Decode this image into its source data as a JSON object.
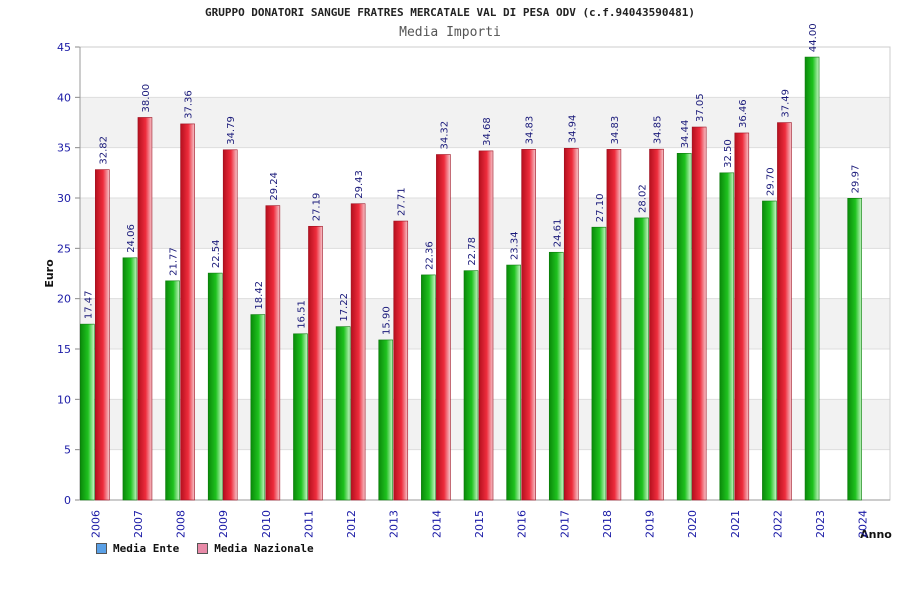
{
  "header": {
    "title": "GRUPPO DONATORI SANGUE FRATRES MERCATALE VAL DI PESA ODV (c.f.94043590481)",
    "subtitle": "Media Importi"
  },
  "colors": {
    "ente_bar": "#1fc21f",
    "nazionale_bar": "#ee2c3c",
    "ente_legend": "#5aa0e6",
    "nazionale_legend": "#e88aa8",
    "band": "#f2f2f2",
    "axis_text": "#1a1aa6"
  },
  "legend": {
    "ente": "Media Ente",
    "nazionale": "Media Nazionale"
  },
  "chart_data": {
    "type": "bar",
    "title": "Media Importi",
    "xlabel": "Anno",
    "ylabel": "Euro",
    "ylim": [
      0,
      45
    ],
    "yticks": [
      0,
      5,
      10,
      15,
      20,
      25,
      30,
      35,
      40,
      45
    ],
    "categories": [
      "2006",
      "2007",
      "2008",
      "2009",
      "2010",
      "2011",
      "2012",
      "2013",
      "2014",
      "2015",
      "2016",
      "2017",
      "2018",
      "2019",
      "2020",
      "2021",
      "2022",
      "2023",
      "2024"
    ],
    "series": [
      {
        "name": "Media Ente",
        "values": [
          17.47,
          24.06,
          21.77,
          22.54,
          18.42,
          16.51,
          17.22,
          15.9,
          22.36,
          22.78,
          23.34,
          24.61,
          27.1,
          28.02,
          34.44,
          32.5,
          29.7,
          44.0,
          29.97
        ]
      },
      {
        "name": "Media Nazionale",
        "values": [
          32.82,
          38.0,
          37.36,
          34.79,
          29.24,
          27.19,
          29.43,
          27.71,
          34.32,
          34.68,
          34.83,
          34.94,
          34.83,
          34.85,
          37.05,
          36.46,
          37.49,
          null,
          null
        ]
      }
    ],
    "value_labels": [
      [
        "17.47",
        "24.06",
        "21.77",
        "22.54",
        "18.42",
        "16.51",
        "17.22",
        "15.90",
        "22.36",
        "22.78",
        "23.34",
        "24.61",
        "27.10",
        "28.02",
        "34.44",
        "32.50",
        "29.70",
        "44.00",
        "29.97"
      ],
      [
        "32.82",
        "38.00",
        "37.36",
        "34.79",
        "29.24",
        "27.19",
        "29.43",
        "27.71",
        "34.32",
        "34.68",
        "34.83",
        "34.94",
        "34.83",
        "34.85",
        "37.05",
        "36.46",
        "37.49",
        null,
        null
      ]
    ]
  }
}
